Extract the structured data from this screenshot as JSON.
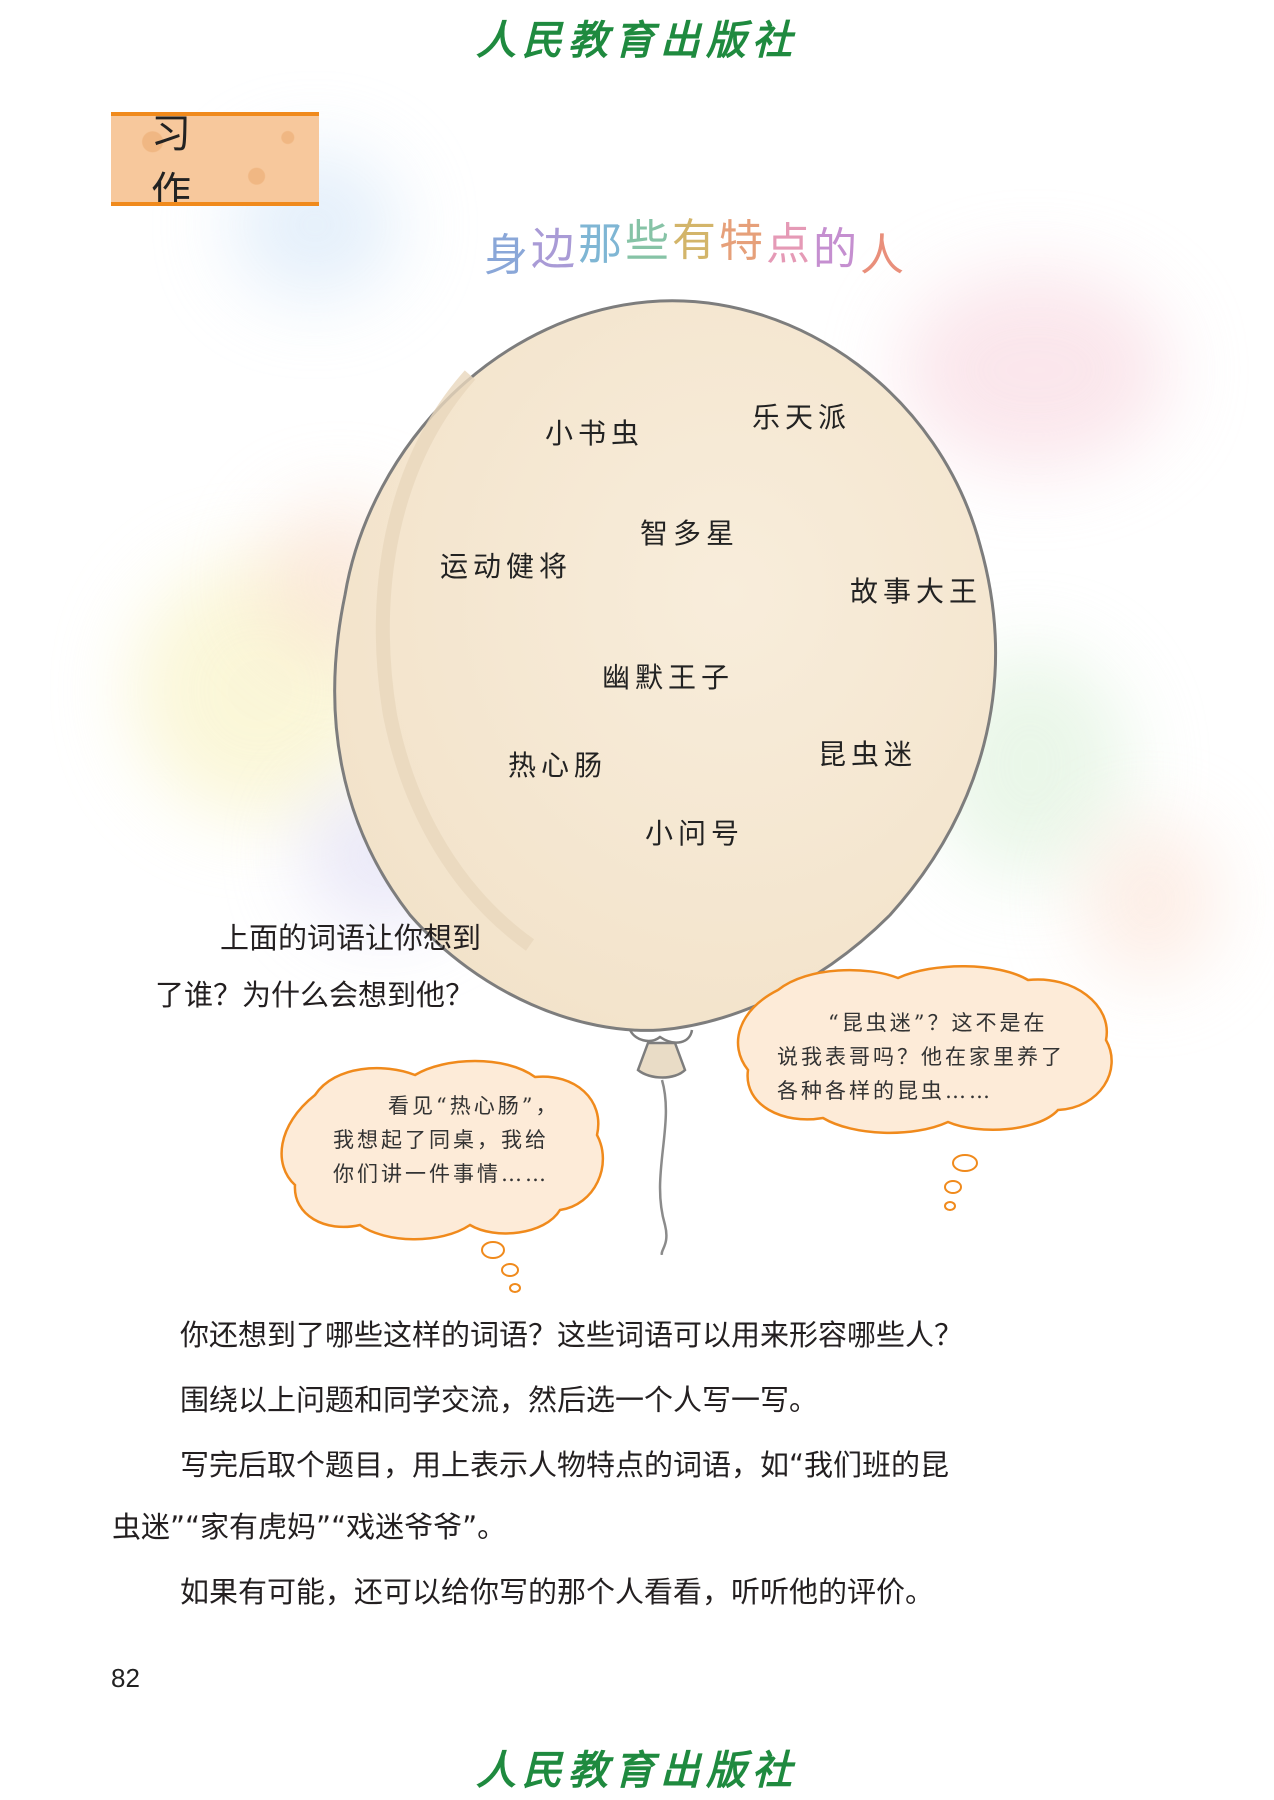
{
  "publisher": "人民教育出版社",
  "section_label": "习作",
  "title": "身边那些有特点的人",
  "balloon_words": [
    "小书虫",
    "乐天派",
    "智多星",
    "运动健将",
    "故事大王",
    "幽默王子",
    "热心肠",
    "昆虫迷",
    "小问号"
  ],
  "prompt_question_line1": "上面的词语让你想到",
  "prompt_question_line2": "了谁？为什么会想到他？",
  "bubble_left": {
    "line1": "看见“热心肠”，",
    "line2": "我想起了同桌，我给",
    "line3": "你们讲一件事情……"
  },
  "bubble_right": {
    "line1": "“昆虫迷”？这不是在",
    "line2": "说我表哥吗？他在家里养了",
    "line3": "各种各样的昆虫……"
  },
  "paragraphs": [
    "你还想到了哪些这样的词语？这些词语可以用来形容哪些人？",
    "围绕以上问题和同学交流，然后选一个人写一写。",
    "写完后取个题目，用上表示人物特点的词语，如“我们班的昆",
    "虫迷”“家有虎妈”“戏迷爷爷”。",
    "如果有可能，还可以给你写的那个人看看，听听他的评价。"
  ],
  "page_number": "82",
  "colors": {
    "publisher_green": "#1f8a3f",
    "label_orange": "#f08a1c",
    "label_fill": "#f7c89c",
    "balloon_fill": "#f6ead6",
    "bubble_border": "#f08a1c"
  }
}
